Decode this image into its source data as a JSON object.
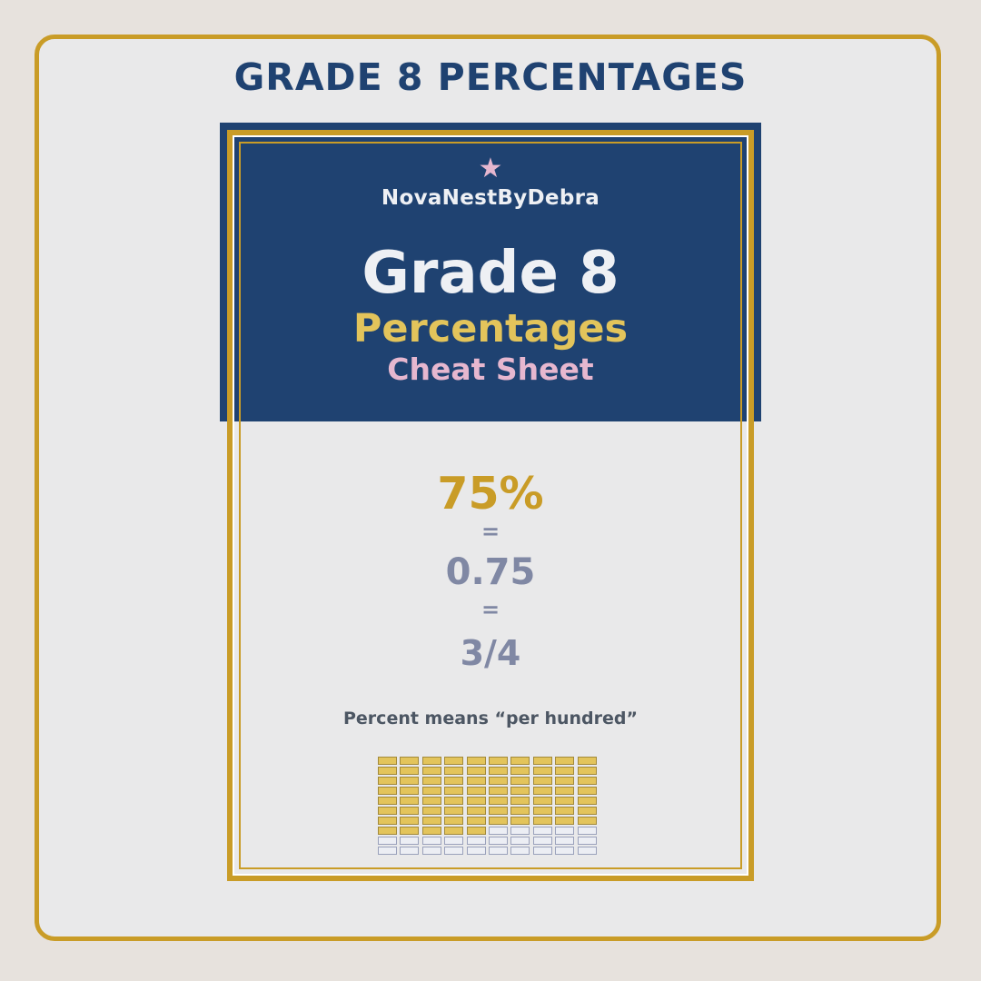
{
  "page_title": "GRADE 8 PERCENTAGES",
  "sheet": {
    "star_icon": "★",
    "brand": "NovaNestByDebra",
    "grade": "Grade 8",
    "topic": "Percentages",
    "subtitle": "Cheat Sheet",
    "percent": "75%",
    "equals": "=",
    "decimal": "0.75",
    "fraction": "3/4",
    "definition": "Percent means “per hundred”"
  },
  "hundred_grid": {
    "rows": 10,
    "cols": 10,
    "filled_count": 75
  },
  "colors": {
    "navy": "#1f4271",
    "gold": "#c99c27",
    "light_gold": "#e3c45b",
    "pink": "#e6b7cf",
    "gray_blue": "#8088a4"
  }
}
